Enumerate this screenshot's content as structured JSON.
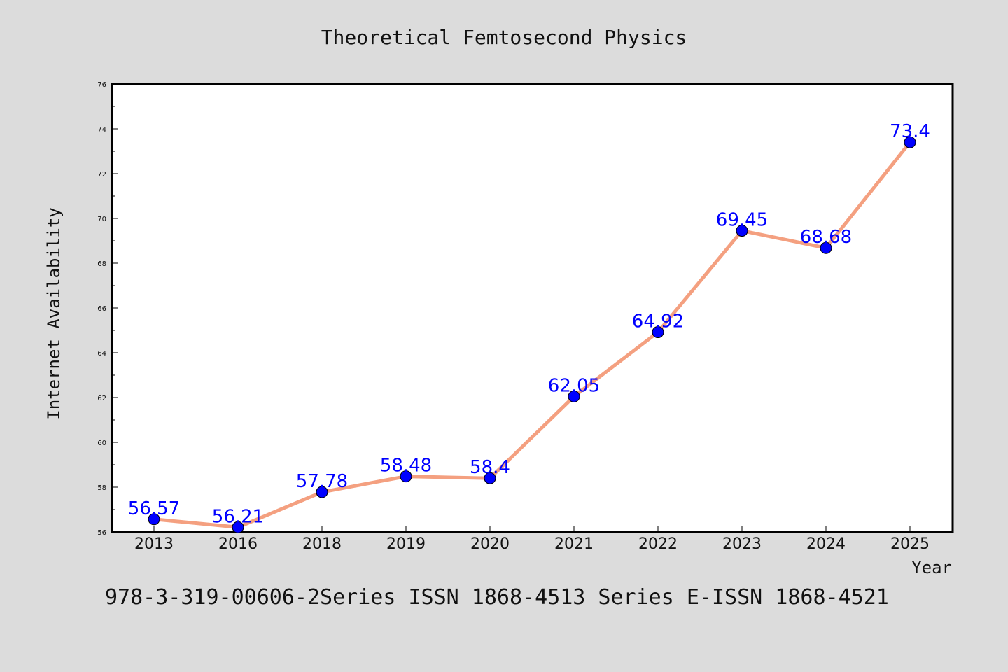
{
  "chart_data": {
    "type": "line",
    "title": "Theoretical Femtosecond Physics",
    "xlabel": "Year",
    "ylabel": "Internet Availability",
    "categories": [
      "2013",
      "2016",
      "2018",
      "2019",
      "2020",
      "2021",
      "2022",
      "2023",
      "2024",
      "2025"
    ],
    "series": [
      {
        "values": [
          56.57,
          56.21,
          57.78,
          58.48,
          58.4,
          62.05,
          64.92,
          69.45,
          68.68,
          73.4
        ]
      }
    ],
    "data_labels": [
      "56.57",
      "56.21",
      "57.78",
      "58.48",
      "58.4",
      "62.05",
      "64.92",
      "69.45",
      "68.68",
      "73.4"
    ],
    "ylim": [
      56,
      76
    ],
    "yticks": [
      "56",
      "58",
      "60",
      "62",
      "64",
      "66",
      "68",
      "70",
      "72",
      "74",
      "76"
    ],
    "grid": false,
    "colors": {
      "line": "#f4a080",
      "marker": "#0000ff",
      "label": "#0000ff",
      "background": "#dcdcdc",
      "plot_background": "#ffffff"
    }
  },
  "footnote": "978-3-319-00606-2Series ISSN 1868-4513 Series E-ISSN 1868-4521"
}
